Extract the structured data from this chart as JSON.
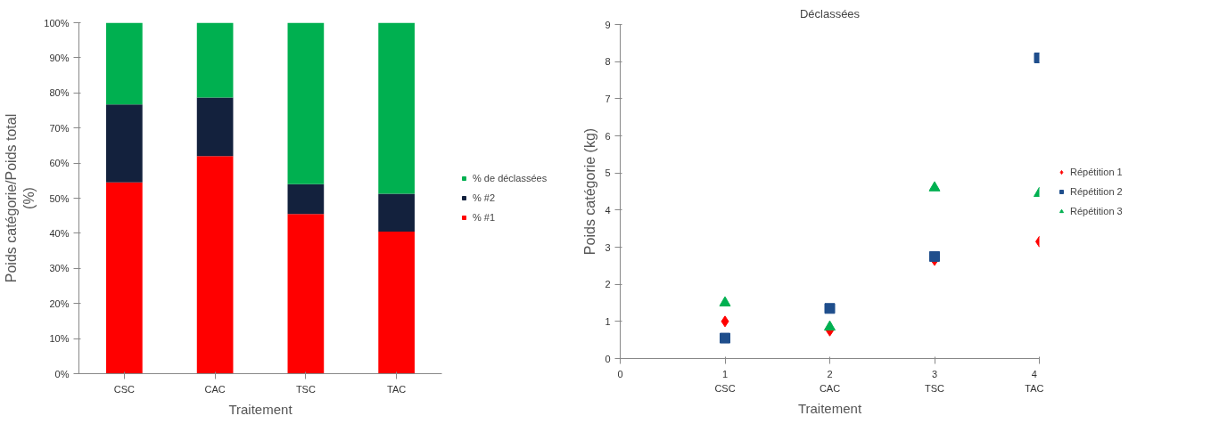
{
  "chart_data": [
    {
      "type": "bar",
      "stacked": true,
      "xlabel": "Traitement",
      "ylabel": "Poids catégorie/Poids total\n(%)",
      "categories": [
        "CSC",
        "CAC",
        "TSC",
        "TAC"
      ],
      "ylim": [
        0,
        100
      ],
      "yticks": [
        {
          "value": 0,
          "label": "0%"
        },
        {
          "value": 10,
          "label": "10%"
        },
        {
          "value": 20,
          "label": "20%"
        },
        {
          "value": 30,
          "label": "30%"
        },
        {
          "value": 40,
          "label": "40%"
        },
        {
          "value": 50,
          "label": "50%"
        },
        {
          "value": 60,
          "label": "60%"
        },
        {
          "value": 70,
          "label": "70%"
        },
        {
          "value": 80,
          "label": "80%"
        },
        {
          "value": 90,
          "label": "90%"
        },
        {
          "value": 100,
          "label": "100%"
        }
      ],
      "legend": "right",
      "series": [
        {
          "name": "% #1",
          "color": "#ff0000",
          "values": [
            54.5,
            62,
            45.5,
            40.5
          ]
        },
        {
          "name": "% #2",
          "color": "#13213d",
          "values": [
            22.2,
            16.7,
            8.5,
            10.8
          ]
        },
        {
          "name": "% de déclassées",
          "color": "#00b050",
          "values": [
            23.3,
            21.3,
            46,
            48.7
          ]
        }
      ]
    },
    {
      "type": "scatter",
      "title": "Déclassées",
      "xlabel": "Traitement",
      "ylabel": "Poids catégorie (kg)",
      "x": [
        1,
        2,
        3,
        4
      ],
      "xlim": [
        0,
        4
      ],
      "xticks": [
        0,
        {
          "value": 1,
          "label": "1\nCSC"
        },
        {
          "value": 2,
          "label": "2\nCAC"
        },
        {
          "value": 3,
          "label": "3\nTSC"
        },
        {
          "value": 4,
          "label": "4\nTAC"
        }
      ],
      "ylim": [
        0,
        9
      ],
      "yticks": [
        0,
        1,
        2,
        3,
        4,
        5,
        6,
        7,
        8,
        9
      ],
      "legend": "right",
      "series": [
        {
          "name": "Répétition 1",
          "color": "#ff0000",
          "marker": "diamond",
          "values": [
            1.0,
            0.75,
            2.65,
            3.15
          ]
        },
        {
          "name": "Répétition 2",
          "color": "#1f4e8c",
          "marker": "square",
          "values": [
            0.55,
            1.35,
            2.75,
            8.1
          ]
        },
        {
          "name": "Répétition 3",
          "color": "#00b050",
          "marker": "triangle",
          "values": [
            1.5,
            0.85,
            4.6,
            4.45
          ]
        }
      ]
    }
  ]
}
